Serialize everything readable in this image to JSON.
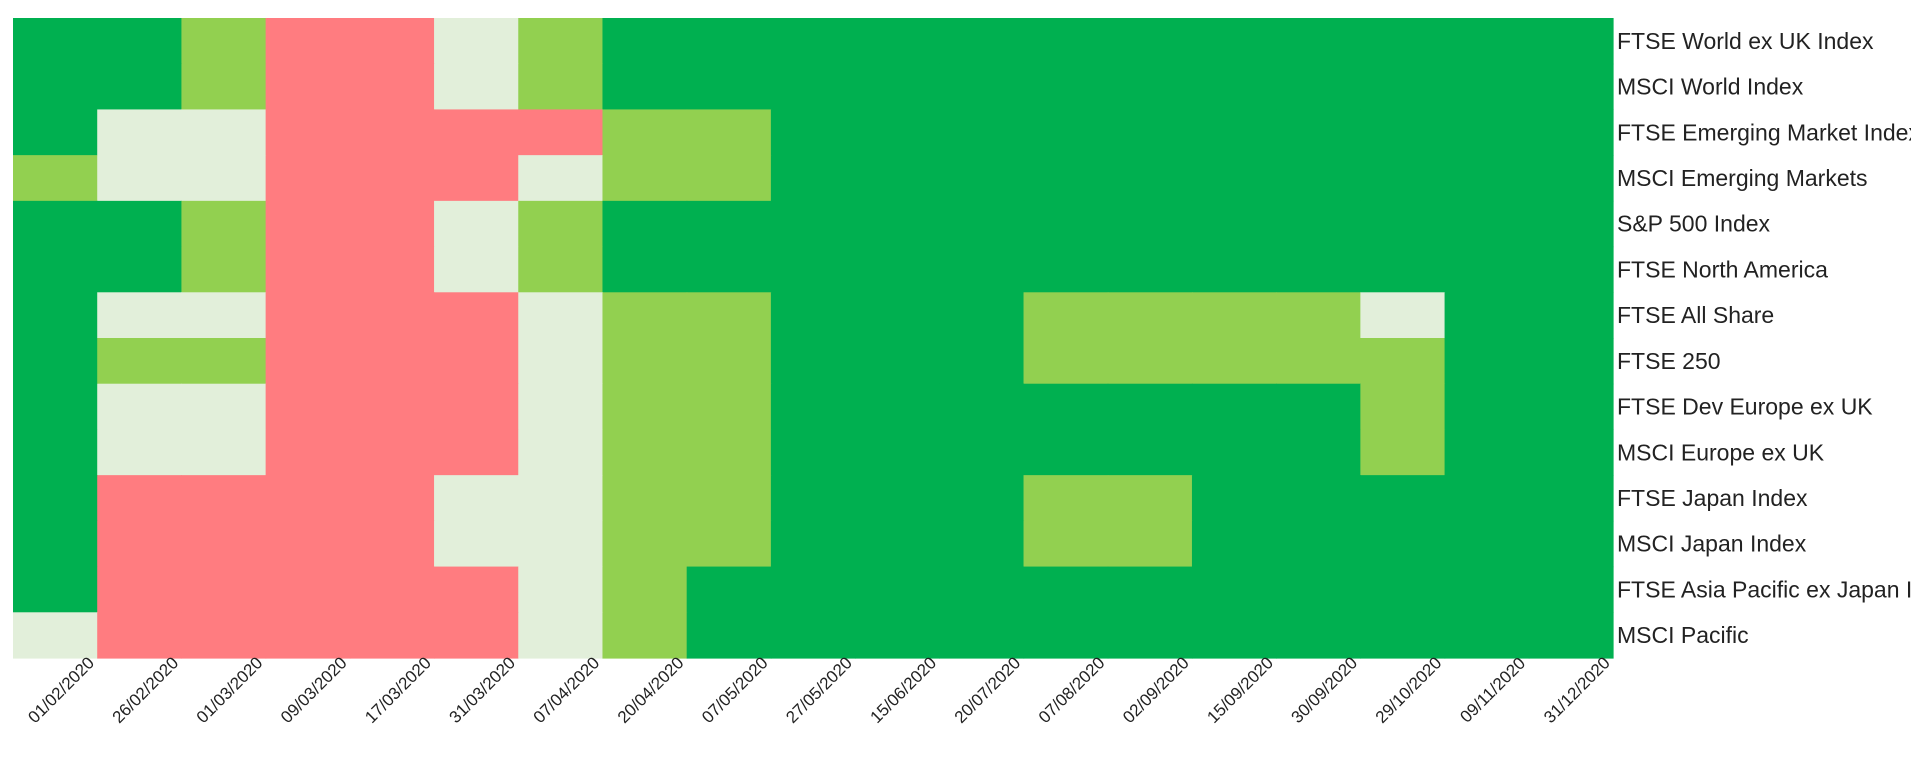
{
  "chart_data": {
    "type": "heatmap",
    "title": "",
    "xlabel": "",
    "ylabel": "",
    "legend": "none",
    "grid": false,
    "colors": {
      "red": "#ff7c80",
      "pale": "#e2efda",
      "light_green": "#92d050",
      "green": "#00b050"
    },
    "x": [
      "01/02/2020",
      "26/02/2020",
      "01/03/2020",
      "09/03/2020",
      "17/03/2020",
      "31/03/2020",
      "07/04/2020",
      "20/04/2020",
      "07/05/2020",
      "27/05/2020",
      "15/06/2020",
      "20/07/2020",
      "07/08/2020",
      "02/09/2020",
      "15/09/2020",
      "30/09/2020",
      "29/10/2020",
      "09/11/2020",
      "31/12/2020"
    ],
    "y": [
      "FTSE World ex UK Index",
      "MSCI World Index",
      "FTSE Emerging Market Index",
      "MSCI Emerging Markets",
      "S&P 500 Index",
      "FTSE North America",
      "FTSE All Share",
      "FTSE 250",
      "FTSE Dev Europe ex UK",
      "MSCI Europe ex UK",
      "FTSE Japan Index",
      "MSCI Japan Index",
      "FTSE Asia Pacific ex Japan Index",
      "MSCI Pacific"
    ],
    "cells": [
      [
        "green",
        "green",
        "light_green",
        "red",
        "red",
        "pale",
        "light_green",
        "green",
        "green",
        "green",
        "green",
        "green",
        "green",
        "green",
        "green",
        "green",
        "green",
        "green",
        "green"
      ],
      [
        "green",
        "green",
        "light_green",
        "red",
        "red",
        "pale",
        "light_green",
        "green",
        "green",
        "green",
        "green",
        "green",
        "green",
        "green",
        "green",
        "green",
        "green",
        "green",
        "green"
      ],
      [
        "green",
        "pale",
        "pale",
        "red",
        "red",
        "red",
        "red",
        "light_green",
        "light_green",
        "green",
        "green",
        "green",
        "green",
        "green",
        "green",
        "green",
        "green",
        "green",
        "green"
      ],
      [
        "light_green",
        "pale",
        "pale",
        "red",
        "red",
        "red",
        "pale",
        "light_green",
        "light_green",
        "green",
        "green",
        "green",
        "green",
        "green",
        "green",
        "green",
        "green",
        "green",
        "green"
      ],
      [
        "green",
        "green",
        "light_green",
        "red",
        "red",
        "pale",
        "light_green",
        "green",
        "green",
        "green",
        "green",
        "green",
        "green",
        "green",
        "green",
        "green",
        "green",
        "green",
        "green"
      ],
      [
        "green",
        "green",
        "light_green",
        "red",
        "red",
        "pale",
        "light_green",
        "green",
        "green",
        "green",
        "green",
        "green",
        "green",
        "green",
        "green",
        "green",
        "green",
        "green",
        "green"
      ],
      [
        "green",
        "pale",
        "pale",
        "red",
        "red",
        "red",
        "pale",
        "light_green",
        "light_green",
        "green",
        "green",
        "green",
        "light_green",
        "light_green",
        "light_green",
        "light_green",
        "pale",
        "green",
        "green"
      ],
      [
        "green",
        "light_green",
        "light_green",
        "red",
        "red",
        "red",
        "pale",
        "light_green",
        "light_green",
        "green",
        "green",
        "green",
        "light_green",
        "light_green",
        "light_green",
        "light_green",
        "light_green",
        "green",
        "green"
      ],
      [
        "green",
        "pale",
        "pale",
        "red",
        "red",
        "red",
        "pale",
        "light_green",
        "light_green",
        "green",
        "green",
        "green",
        "green",
        "green",
        "green",
        "green",
        "light_green",
        "green",
        "green"
      ],
      [
        "green",
        "pale",
        "pale",
        "red",
        "red",
        "red",
        "pale",
        "light_green",
        "light_green",
        "green",
        "green",
        "green",
        "green",
        "green",
        "green",
        "green",
        "light_green",
        "green",
        "green"
      ],
      [
        "green",
        "red",
        "red",
        "red",
        "red",
        "pale",
        "pale",
        "light_green",
        "light_green",
        "green",
        "green",
        "green",
        "light_green",
        "light_green",
        "green",
        "green",
        "green",
        "green",
        "green"
      ],
      [
        "green",
        "red",
        "red",
        "red",
        "red",
        "pale",
        "pale",
        "light_green",
        "light_green",
        "green",
        "green",
        "green",
        "light_green",
        "light_green",
        "green",
        "green",
        "green",
        "green",
        "green"
      ],
      [
        "green",
        "red",
        "red",
        "red",
        "red",
        "red",
        "pale",
        "light_green",
        "green",
        "green",
        "green",
        "green",
        "green",
        "green",
        "green",
        "green",
        "green",
        "green",
        "green"
      ],
      [
        "pale",
        "red",
        "red",
        "red",
        "red",
        "red",
        "pale",
        "light_green",
        "green",
        "green",
        "green",
        "green",
        "green",
        "green",
        "green",
        "green",
        "green",
        "green",
        "green"
      ]
    ]
  }
}
